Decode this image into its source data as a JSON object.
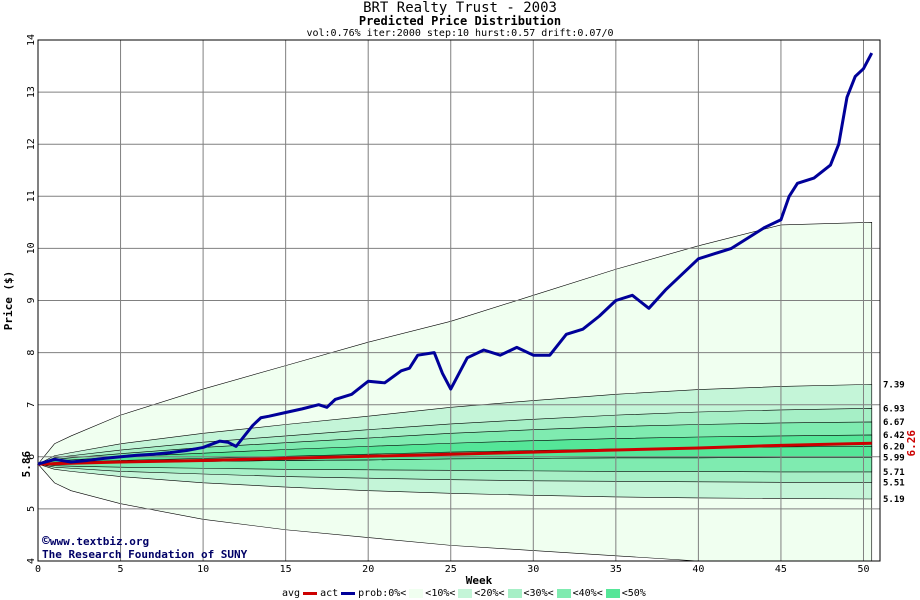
{
  "header": {
    "title": "BRT Realty Trust - 2003",
    "subtitle": "Predicted Price Distribution",
    "params": "vol:0.76% iter:2000 step:10 hurst:0.57 drift:0.07/0"
  },
  "credits": {
    "site": "www.textbiz.org",
    "org": "The Research Foundation of SUNY"
  },
  "colors": {
    "background": "#ffffff",
    "grid": "#808080",
    "avg": "#cc0000",
    "act": "#000099",
    "prob0": "#f0fff0",
    "prob10": "#ddfae8",
    "prob20": "#c4f5d8",
    "prob30": "#a6efc6",
    "prob40": "#7febb0",
    "prob50": "#55e698"
  },
  "legend": {
    "avg": "avg",
    "act": "act",
    "prob": "prob:",
    "items": [
      "0%<",
      "<10%<",
      "<20%<",
      "<30%<",
      "<40%<",
      "<50%"
    ]
  },
  "chart_data": {
    "type": "line",
    "title": "BRT Realty Trust - 2003",
    "subtitle": "Predicted Price Distribution",
    "xlabel": "Week",
    "ylabel": "Price ($)",
    "xlim": [
      0,
      51
    ],
    "ylim": [
      4,
      14
    ],
    "xticks": [
      0,
      5,
      10,
      15,
      20,
      25,
      30,
      35,
      40,
      45,
      50
    ],
    "yticks": [
      4,
      5,
      6,
      7,
      8,
      9,
      10,
      11,
      12,
      13,
      14
    ],
    "grid": true,
    "start_price_label": "5.86",
    "end_avg_label": "6.26",
    "band_end_labels": [
      "7.39",
      "6.93",
      "6.67",
      "6.42",
      "6.20",
      "5.99",
      "5.71",
      "5.51",
      "5.19"
    ],
    "bands": {
      "x": [
        0,
        1,
        2,
        5,
        10,
        15,
        20,
        25,
        30,
        35,
        40,
        45,
        50.5
      ],
      "p0_upper": [
        5.86,
        6.25,
        6.4,
        6.8,
        7.3,
        7.75,
        8.2,
        8.6,
        9.1,
        9.6,
        10.05,
        10.45,
        10.5
      ],
      "p0_lower": [
        5.86,
        5.5,
        5.35,
        5.1,
        4.8,
        4.6,
        4.45,
        4.3,
        4.2,
        4.1,
        4.0,
        4.0,
        4.0
      ],
      "p10_upper": [
        5.86,
        6.02,
        6.08,
        6.25,
        6.45,
        6.62,
        6.78,
        6.95,
        7.08,
        7.2,
        7.29,
        7.35,
        7.39
      ],
      "p10_lower": [
        5.86,
        5.76,
        5.72,
        5.62,
        5.5,
        5.42,
        5.35,
        5.3,
        5.26,
        5.23,
        5.21,
        5.2,
        5.19
      ],
      "p20_upper": [
        5.86,
        5.98,
        6.02,
        6.13,
        6.28,
        6.4,
        6.52,
        6.63,
        6.72,
        6.8,
        6.86,
        6.9,
        6.93
      ],
      "p20_lower": [
        5.86,
        5.8,
        5.78,
        5.72,
        5.67,
        5.62,
        5.59,
        5.56,
        5.54,
        5.53,
        5.52,
        5.51,
        5.51
      ],
      "p30_upper": [
        5.86,
        5.95,
        5.98,
        6.06,
        6.18,
        6.27,
        6.36,
        6.45,
        6.52,
        6.58,
        6.62,
        6.65,
        6.67
      ],
      "p30_lower": [
        5.86,
        5.83,
        5.82,
        5.8,
        5.78,
        5.76,
        5.75,
        5.74,
        5.73,
        5.72,
        5.72,
        5.71,
        5.71
      ],
      "p40_upper": [
        5.86,
        5.92,
        5.94,
        6.0,
        6.07,
        6.14,
        6.2,
        6.26,
        6.31,
        6.35,
        6.38,
        6.4,
        6.42
      ],
      "p40_lower": [
        5.86,
        5.86,
        5.87,
        5.89,
        5.91,
        5.93,
        5.94,
        5.96,
        5.97,
        5.98,
        5.98,
        5.99,
        5.99
      ],
      "p50_upper": [
        5.86,
        5.89,
        5.9,
        5.93,
        5.97,
        6.01,
        6.05,
        6.09,
        6.12,
        6.15,
        6.17,
        6.19,
        6.2
      ],
      "p50_lower": [
        5.86,
        5.86,
        5.87,
        5.89,
        5.91,
        5.93,
        5.94,
        5.96,
        5.97,
        5.98,
        5.98,
        5.99,
        5.99
      ]
    },
    "series": [
      {
        "name": "avg",
        "x": [
          0,
          5,
          10,
          15,
          20,
          25,
          30,
          35,
          40,
          45,
          50.5
        ],
        "y": [
          5.86,
          5.9,
          5.93,
          5.97,
          6.01,
          6.05,
          6.09,
          6.13,
          6.17,
          6.22,
          6.26
        ]
      },
      {
        "name": "act",
        "x": [
          0,
          1,
          2,
          3,
          4,
          5,
          6,
          7,
          8,
          9,
          10,
          11,
          11.5,
          12,
          12.5,
          13,
          13.5,
          14,
          15,
          16,
          17,
          17.5,
          18,
          19,
          20,
          21,
          22,
          22.5,
          23,
          24,
          24.5,
          25,
          26,
          27,
          28,
          29,
          30,
          31,
          32,
          33,
          34,
          35,
          36,
          37,
          38,
          39,
          40,
          41,
          42,
          43,
          44,
          45,
          45.5,
          46,
          47,
          48,
          48.5,
          49,
          49.5,
          50,
          50.5
        ],
        "y": [
          5.86,
          5.95,
          5.9,
          5.93,
          5.97,
          6.0,
          6.03,
          6.05,
          6.08,
          6.12,
          6.18,
          6.3,
          6.28,
          6.2,
          6.4,
          6.6,
          6.75,
          6.78,
          6.85,
          6.92,
          7.0,
          6.95,
          7.1,
          7.2,
          7.45,
          7.42,
          7.65,
          7.7,
          7.95,
          8.0,
          7.6,
          7.3,
          7.9,
          8.05,
          7.95,
          8.1,
          7.95,
          7.95,
          8.35,
          8.45,
          8.7,
          9.0,
          9.1,
          8.85,
          9.2,
          9.5,
          9.8,
          9.9,
          10.0,
          10.2,
          10.4,
          10.55,
          11.0,
          11.25,
          11.35,
          11.6,
          12.0,
          12.9,
          13.3,
          13.45,
          13.75
        ]
      }
    ]
  }
}
